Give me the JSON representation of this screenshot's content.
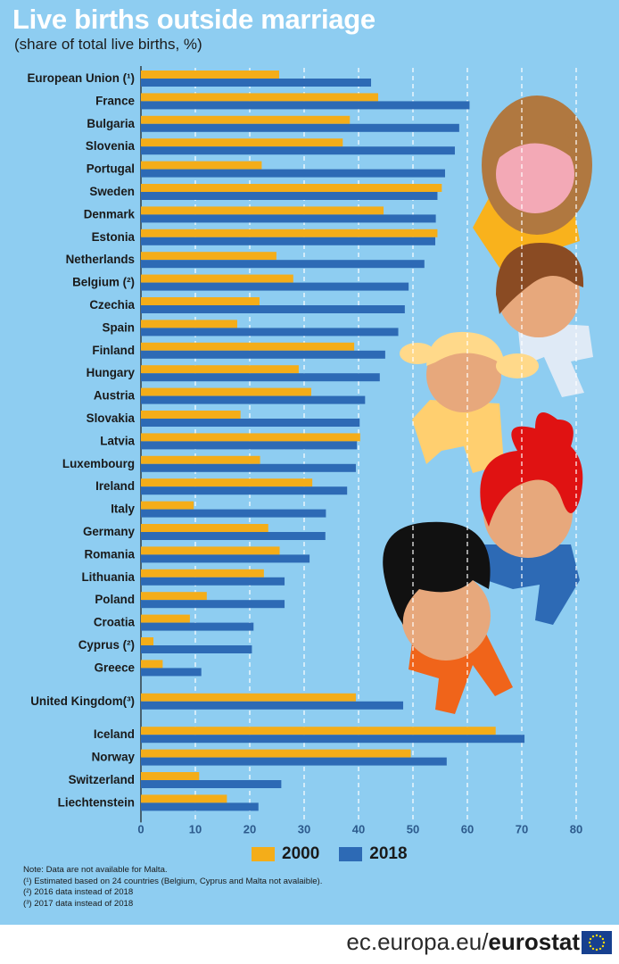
{
  "title": "Live births outside marriage",
  "subtitle": "(share of total live births, %)",
  "colors": {
    "series_2000": "#f4ad19",
    "series_2018": "#2d6ab5",
    "background": "#8ecdf1"
  },
  "chart_data": {
    "type": "bar",
    "orientation": "horizontal",
    "title": "Live births outside marriage",
    "subtitle": "(share of total live births, %)",
    "xlim": [
      0,
      80
    ],
    "xticks": [
      "0",
      "10",
      "20",
      "30",
      "40",
      "50",
      "60",
      "70",
      "80"
    ],
    "grid": "vertical dashed",
    "legend_position": "bottom",
    "categories": [
      "European Union (¹)",
      "France",
      "Bulgaria",
      "Slovenia",
      "Portugal",
      "Sweden",
      "Denmark",
      "Estonia",
      "Netherlands",
      "Belgium (²)",
      "Czechia",
      "Spain",
      "Finland",
      "Hungary",
      "Austria",
      "Slovakia",
      "Latvia",
      "Luxembourg",
      "Ireland",
      "Italy",
      "Germany",
      "Romania",
      "Lithuania",
      "Poland",
      "Croatia",
      "Cyprus (²)",
      "Greece",
      "United Kingdom(³)",
      "Iceland",
      "Norway",
      "Switzerland",
      "Liechtenstein"
    ],
    "series": [
      {
        "name": "2000",
        "values": [
          25.4,
          43.6,
          38.4,
          37.1,
          22.2,
          55.3,
          44.6,
          54.5,
          24.9,
          28.0,
          21.8,
          17.7,
          39.2,
          29.0,
          31.3,
          18.3,
          40.3,
          21.9,
          31.5,
          9.7,
          23.4,
          25.5,
          22.6,
          12.1,
          9.0,
          2.3,
          4.0,
          39.5,
          65.2,
          49.6,
          10.7,
          15.8
        ]
      },
      {
        "name": "2018",
        "values": [
          42.3,
          60.4,
          58.5,
          57.7,
          55.9,
          54.5,
          54.2,
          54.1,
          52.1,
          49.2,
          48.5,
          47.3,
          44.9,
          43.9,
          41.2,
          40.2,
          39.7,
          39.5,
          37.9,
          34.0,
          33.9,
          31.0,
          26.4,
          26.4,
          20.7,
          20.4,
          11.1,
          48.2,
          70.5,
          56.2,
          25.8,
          21.6
        ]
      }
    ]
  },
  "legend": {
    "label_2000": "2000",
    "label_2018": "2018"
  },
  "notes": [
    "Note: Data are not available for Malta.",
    "(¹) Estimated based on 24 countries (Belgium, Cyprus and Malta not avalaible).",
    "(²) 2016 data instead of 2018",
    "(³) 2017 data instead of 2018"
  ],
  "footer": {
    "domain": "ec.europa.eu/",
    "brand": "eurostat"
  },
  "icons": {
    "eu_flag": "eu-flag-icon"
  }
}
